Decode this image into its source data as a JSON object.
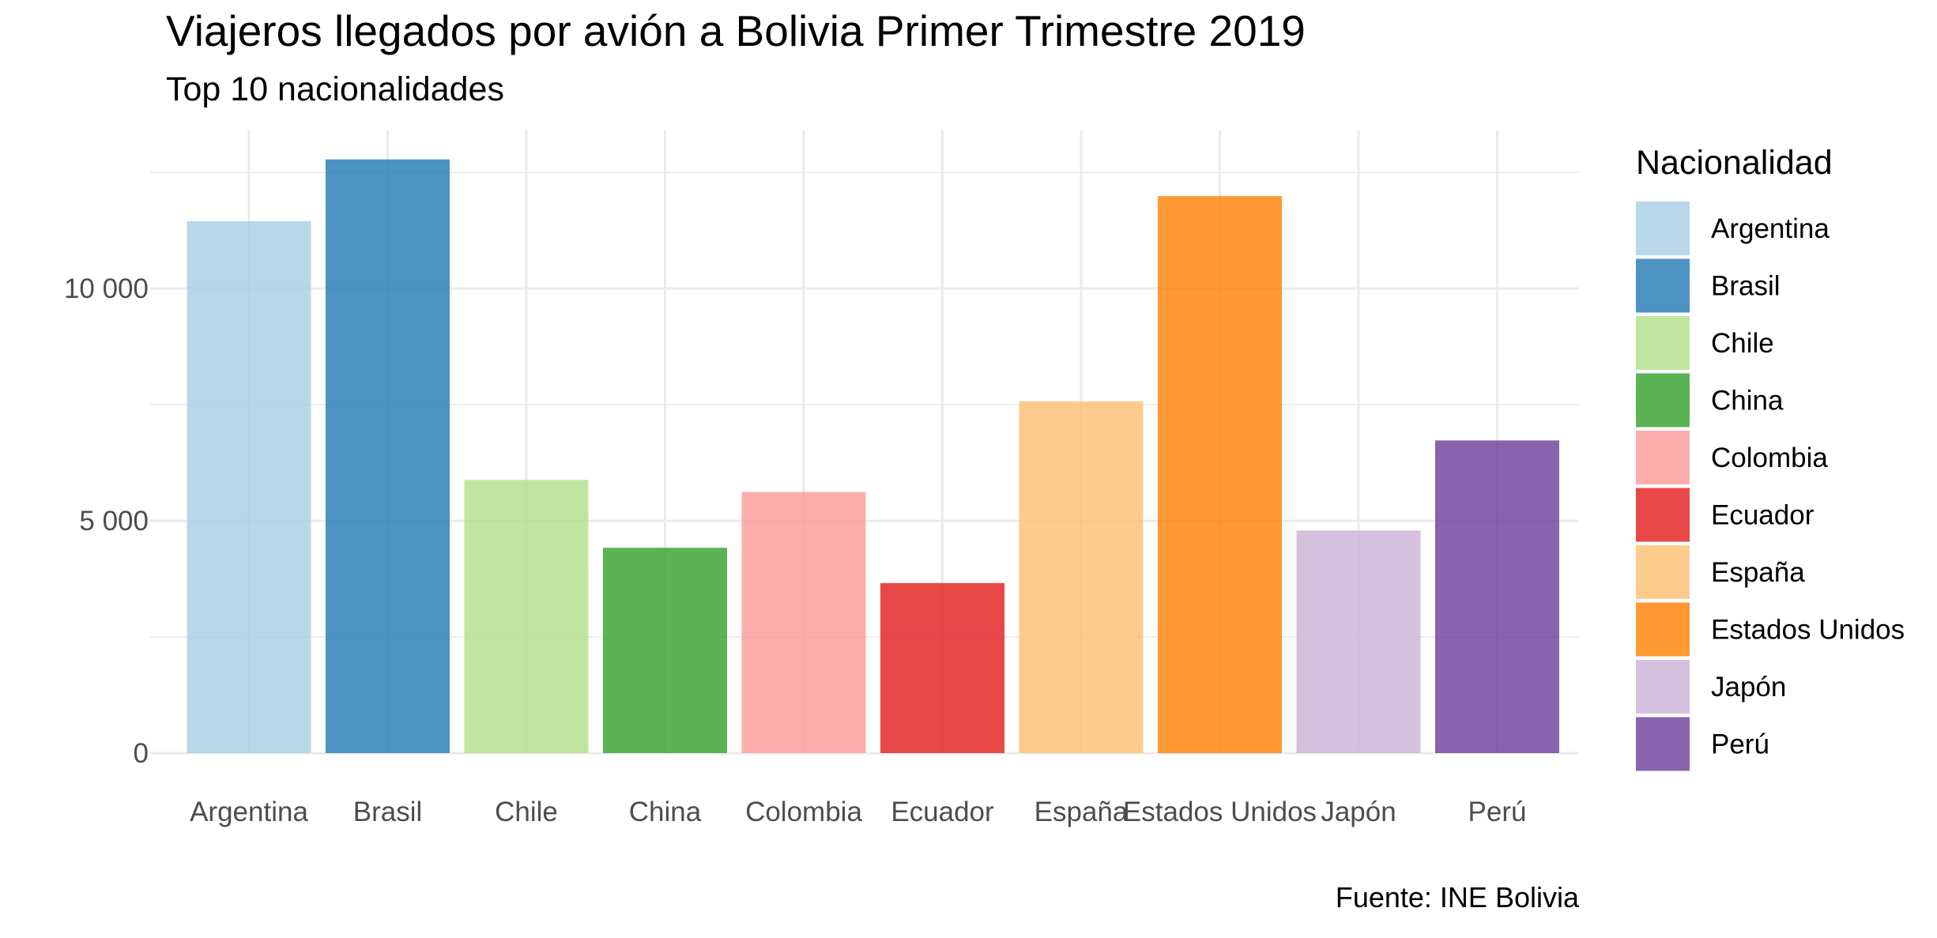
{
  "chart_data": {
    "type": "bar",
    "title": "Viajeros llegados por avión a Bolivia Primer Trimestre 2019",
    "subtitle": "Top 10 nacionalidades",
    "caption": "Fuente: INE Bolivia",
    "xlabel": "",
    "ylabel": "",
    "categories": [
      "Argentina",
      "Brasil",
      "Chile",
      "China",
      "Colombia",
      "Ecuador",
      "España",
      "Estados Unidos",
      "Japón",
      "Perú"
    ],
    "values": [
      11450,
      12780,
      5880,
      4420,
      5620,
      3660,
      7570,
      11990,
      4790,
      6730
    ],
    "ylim": [
      0,
      13500
    ],
    "yticks": [
      0,
      5000,
      10000
    ],
    "ytick_labels": [
      "0",
      "5 000",
      "10 000"
    ],
    "legend": {
      "title": "Nacionalidad",
      "position": "right"
    },
    "colors": [
      "#a6cee3",
      "#1f78b4",
      "#b2df8a",
      "#33a02c",
      "#fb9a99",
      "#e31a1c",
      "#fdbf6f",
      "#ff7f00",
      "#cab2d6",
      "#6a3d9a"
    ],
    "bar_opacity": 0.8,
    "grid": true
  }
}
